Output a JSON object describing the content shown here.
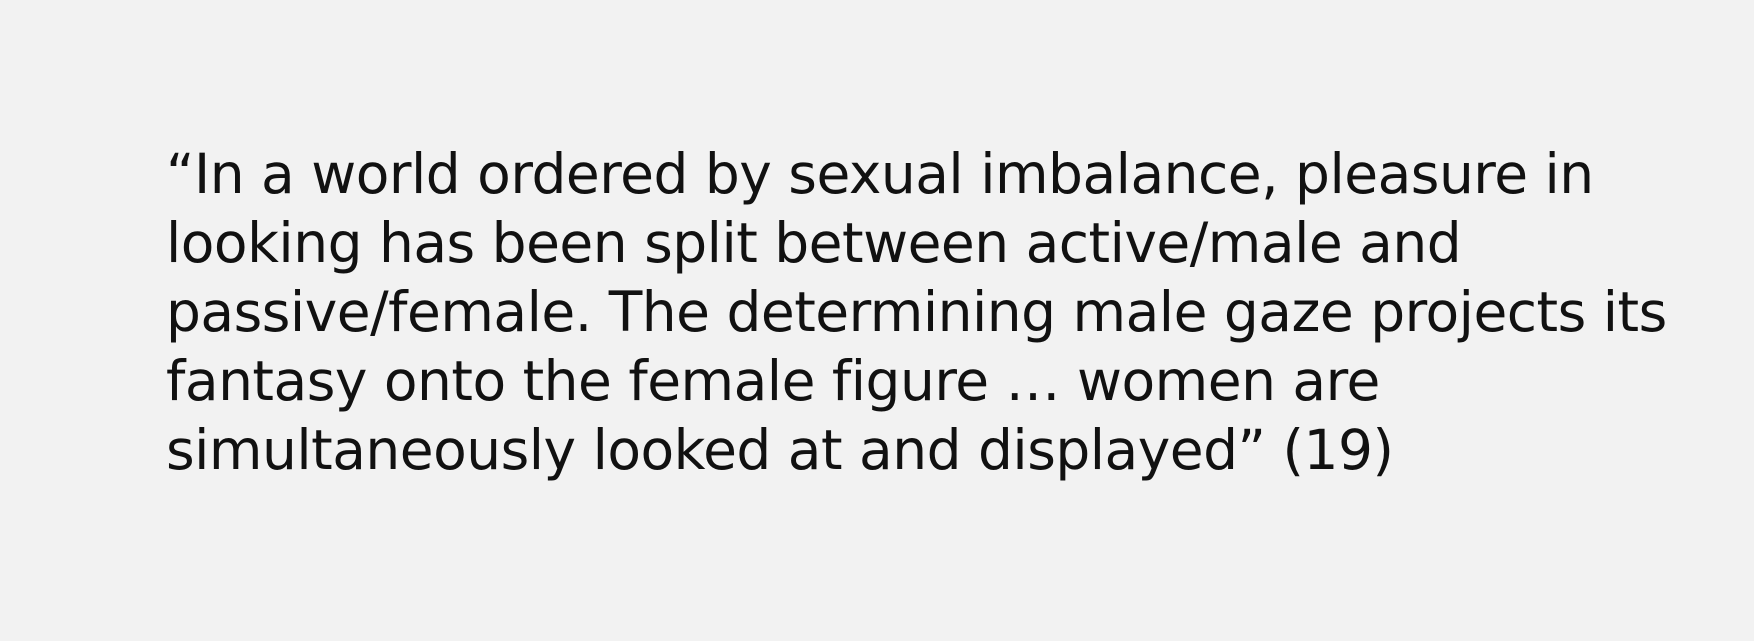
{
  "quote": {
    "lines": [
      "“In a world ordered by sexual imbalance, pleasure in",
      "looking has been split between active/male and",
      "passive/female. The determining male gaze projects its",
      "fantasy onto the female figure … women are",
      "simultaneously looked at and displayed” (19)"
    ]
  }
}
